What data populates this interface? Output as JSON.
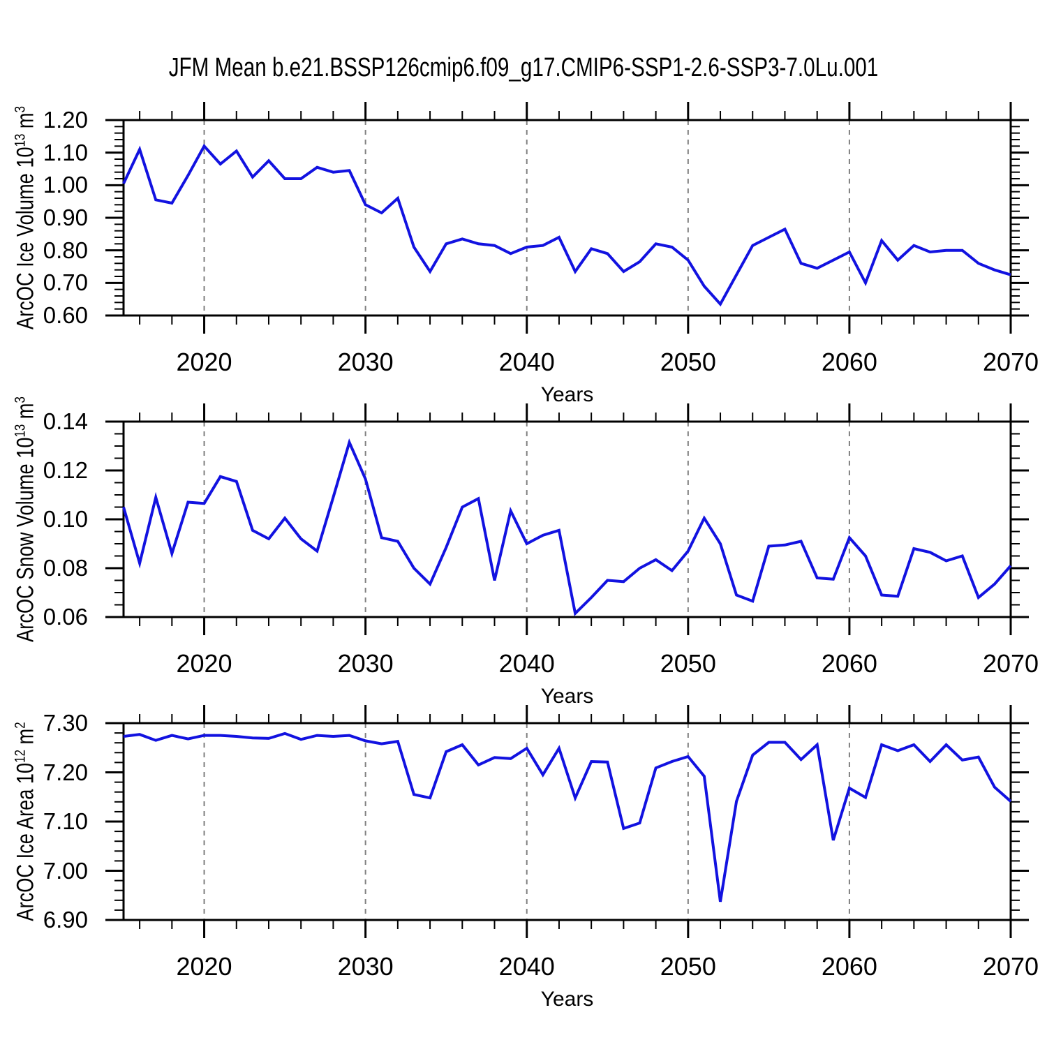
{
  "title": "JFM Mean b.e21.BSSP126cmip6.f09_g17.CMIP6-SSP1-2.6-SSP3-7.0Lu.001",
  "colors": {
    "line": "#1212e0",
    "grid": "#7f7f7f",
    "axis": "#000000",
    "text": "#000000"
  },
  "x_axis": {
    "label": "Years",
    "minor_step": 2,
    "major_step": 10,
    "major_labels": [
      "2020",
      "2030",
      "2040",
      "2050",
      "2060",
      "2070"
    ],
    "grid_years": [
      2020,
      2030,
      2040,
      2050,
      2060
    ],
    "years": [
      2015,
      2016,
      2017,
      2018,
      2019,
      2020,
      2021,
      2022,
      2023,
      2024,
      2025,
      2026,
      2027,
      2028,
      2029,
      2030,
      2031,
      2032,
      2033,
      2034,
      2035,
      2036,
      2037,
      2038,
      2039,
      2040,
      2041,
      2042,
      2043,
      2044,
      2045,
      2046,
      2047,
      2048,
      2049,
      2050,
      2051,
      2052,
      2053,
      2054,
      2055,
      2056,
      2057,
      2058,
      2059,
      2060,
      2061,
      2062,
      2063,
      2064,
      2065,
      2066,
      2067,
      2068,
      2069,
      2070
    ]
  },
  "chart_data": [
    {
      "type": "line",
      "name": "ice-volume",
      "ylabel_parts": [
        {
          "t": "ArcOC Ice Volume 10"
        },
        {
          "t": "13",
          "sup": true
        },
        {
          "t": " m"
        },
        {
          "t": "3",
          "sup": true
        }
      ],
      "ylim": [
        0.6,
        1.2
      ],
      "ytick_major": 0.1,
      "ytick_minor": 0.02,
      "ytick_labels": [
        "1.20",
        "1.10",
        "1.00",
        "0.90",
        "0.80",
        "0.70",
        "0.60"
      ],
      "xlabel": "Years",
      "grid": "vertical-dashed",
      "values": [
        1.005,
        1.11,
        0.955,
        0.945,
        1.03,
        1.12,
        1.065,
        1.105,
        1.025,
        1.075,
        1.02,
        1.02,
        1.055,
        1.04,
        1.045,
        0.94,
        0.915,
        0.96,
        0.81,
        0.735,
        0.82,
        0.835,
        0.82,
        0.815,
        0.79,
        0.81,
        0.815,
        0.84,
        0.735,
        0.805,
        0.79,
        0.735,
        0.765,
        0.82,
        0.81,
        0.77,
        0.69,
        0.635,
        0.725,
        0.815,
        0.84,
        0.865,
        0.76,
        0.745,
        0.77,
        0.795,
        0.7,
        0.83,
        0.77,
        0.815,
        0.795,
        0.8,
        0.8,
        0.76,
        0.74,
        0.725
      ]
    },
    {
      "type": "line",
      "name": "snow-volume",
      "ylabel_parts": [
        {
          "t": "ArcOC Snow Volume 10"
        },
        {
          "t": "13",
          "sup": true
        },
        {
          "t": " m"
        },
        {
          "t": "3",
          "sup": true
        }
      ],
      "ylim": [
        0.06,
        0.14
      ],
      "ytick_major": 0.02,
      "ytick_minor": 0.005,
      "ytick_labels": [
        "0.14",
        "0.12",
        "0.10",
        "0.08",
        "0.06"
      ],
      "xlabel": "Years",
      "grid": "vertical-dashed",
      "values": [
        0.105,
        0.082,
        0.109,
        0.086,
        0.107,
        0.1065,
        0.1175,
        0.1155,
        0.0955,
        0.092,
        0.1005,
        0.092,
        0.087,
        0.109,
        0.1315,
        0.1165,
        0.0925,
        0.091,
        0.08,
        0.0735,
        0.0885,
        0.105,
        0.1085,
        0.075,
        0.1035,
        0.09,
        0.0935,
        0.0955,
        0.0615,
        0.068,
        0.075,
        0.0745,
        0.08,
        0.0835,
        0.079,
        0.087,
        0.1005,
        0.09,
        0.069,
        0.0665,
        0.089,
        0.0895,
        0.091,
        0.076,
        0.0755,
        0.0925,
        0.085,
        0.069,
        0.0685,
        0.088,
        0.0865,
        0.083,
        0.085,
        0.068,
        0.0735,
        0.081
      ]
    },
    {
      "type": "line",
      "name": "ice-area",
      "ylabel_parts": [
        {
          "t": "ArcOC Ice Area 10"
        },
        {
          "t": "12",
          "sup": true
        },
        {
          "t": " m"
        },
        {
          "t": "2",
          "sup": true
        }
      ],
      "ylim": [
        6.9,
        7.3
      ],
      "ytick_major": 0.1,
      "ytick_minor": 0.02,
      "ytick_labels": [
        "7.30",
        "7.20",
        "7.10",
        "7.00",
        "6.90"
      ],
      "xlabel": "Years",
      "grid": "vertical-dashed",
      "values": [
        7.273,
        7.277,
        7.265,
        7.275,
        7.268,
        7.275,
        7.275,
        7.273,
        7.27,
        7.269,
        7.279,
        7.267,
        7.275,
        7.273,
        7.275,
        7.264,
        7.258,
        7.263,
        7.155,
        7.148,
        7.242,
        7.256,
        7.215,
        7.23,
        7.228,
        7.249,
        7.195,
        7.249,
        7.148,
        7.222,
        7.221,
        7.086,
        7.097,
        7.209,
        7.222,
        7.232,
        7.192,
        6.937,
        7.141,
        7.235,
        7.261,
        7.261,
        7.226,
        7.256,
        7.062,
        7.168,
        7.149,
        7.256,
        7.244,
        7.256,
        7.222,
        7.256,
        7.225,
        7.231,
        7.17,
        7.141
      ]
    }
  ]
}
